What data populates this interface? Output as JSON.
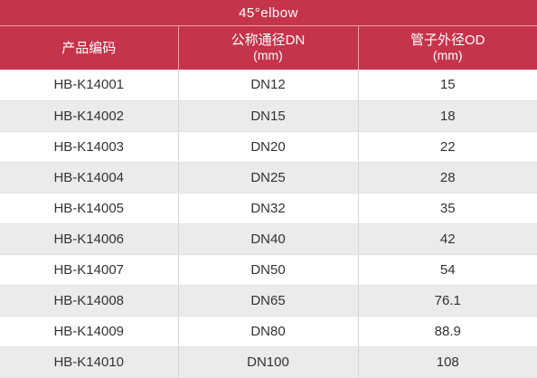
{
  "title": "45°elbow",
  "table": {
    "headers": [
      {
        "main": "产品编码",
        "sub": ""
      },
      {
        "main": "公称通径DN",
        "sub": "(mm)"
      },
      {
        "main": "管子外径OD",
        "sub": "(mm)"
      }
    ],
    "rows": [
      [
        "HB-K14001",
        "DN12",
        "15"
      ],
      [
        "HB-K14002",
        "DN15",
        "18"
      ],
      [
        "HB-K14003",
        "DN20",
        "22"
      ],
      [
        "HB-K14004",
        "DN25",
        "28"
      ],
      [
        "HB-K14005",
        "DN32",
        "35"
      ],
      [
        "HB-K14006",
        "DN40",
        "42"
      ],
      [
        "HB-K14007",
        "DN50",
        "54"
      ],
      [
        "HB-K14008",
        "DN65",
        "76.1"
      ],
      [
        "HB-K14009",
        "DN80",
        "88.9"
      ],
      [
        "HB-K14010",
        "DN100",
        "108"
      ]
    ]
  },
  "colors": {
    "header_bg": "#c5344a",
    "stripe_bg": "#ebebeb"
  }
}
